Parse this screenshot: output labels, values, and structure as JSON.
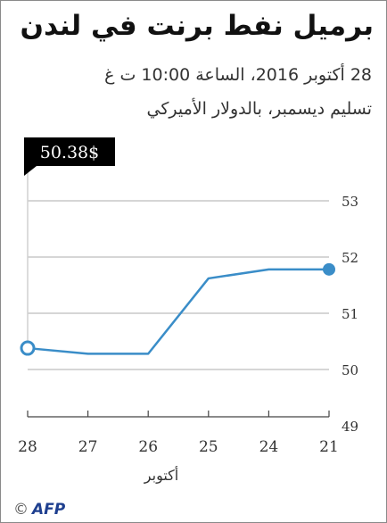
{
  "title": "برميل نفط برنت في لندن",
  "subtitle_line1": "28 أكتوبر 2016، الساعة 10:00 ت غ",
  "subtitle_line2": "تسليم ديسمبر، بالدولار الأميركي",
  "credit_symbol": "©",
  "credit": "AFP",
  "colors": {
    "line": "#3a8dc8",
    "gridline": "#c8c8c8",
    "text": "#333333",
    "badge_bg": "#000000",
    "badge_text": "#ffffff",
    "accent": "#1e3f8f"
  },
  "chart_data": {
    "type": "line",
    "x_labels": [
      "28",
      "27",
      "26",
      "25",
      "24",
      "21"
    ],
    "xlabel": "أكتوبر",
    "values": [
      50.38,
      50.28,
      50.28,
      51.62,
      51.78,
      51.78
    ],
    "yticks": [
      "49",
      "50",
      "51",
      "52",
      "53"
    ],
    "ylim": [
      49,
      53
    ],
    "grid": true,
    "callout": "50.38$",
    "marked_points": [
      "28",
      "21"
    ]
  }
}
